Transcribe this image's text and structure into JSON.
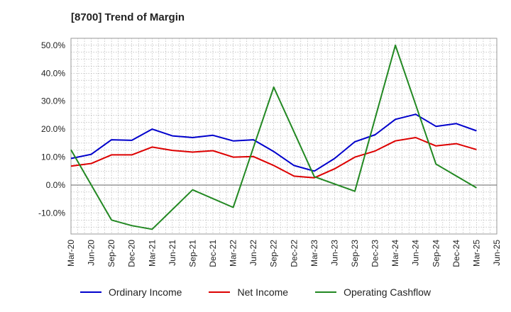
{
  "header": {
    "title": "[8700]  Trend of Margin"
  },
  "colors": {
    "ordinary": "#0000cc",
    "net": "#dd0000",
    "cashflow": "#228822",
    "grid": "#aaaaaa",
    "zero": "#666666"
  },
  "chart_data": {
    "type": "line",
    "title": "[8700]  Trend of Margin",
    "xlabel": "",
    "ylabel": "",
    "ylim": [
      -17.5,
      52.5
    ],
    "yticks": [
      "50.0%",
      "40.0%",
      "30.0%",
      "20.0%",
      "10.0%",
      "0.0%",
      "-10.0%"
    ],
    "ytick_values": [
      50,
      40,
      30,
      20,
      10,
      0,
      -10
    ],
    "categories": [
      "Mar-20",
      "Jun-20",
      "Sep-20",
      "Dec-20",
      "Mar-21",
      "Jun-21",
      "Sep-21",
      "Dec-21",
      "Mar-22",
      "Jun-22",
      "Sep-22",
      "Dec-22",
      "Mar-23",
      "Jun-23",
      "Sep-23",
      "Dec-23",
      "Mar-24",
      "Jun-24",
      "Sep-24",
      "Dec-24",
      "Mar-25",
      "Jun-25"
    ],
    "grid": true,
    "legend_position": "bottom",
    "series": [
      {
        "name": "Ordinary Income",
        "color": "#0000cc",
        "values": [
          9.5,
          11.0,
          16.2,
          16.0,
          20.0,
          17.6,
          17.0,
          17.8,
          15.8,
          16.2,
          12.0,
          7.0,
          5.0,
          9.5,
          15.5,
          18.0,
          23.5,
          25.3,
          21.0,
          22.0,
          19.4,
          null
        ]
      },
      {
        "name": "Net Income",
        "color": "#dd0000",
        "values": [
          6.8,
          7.7,
          10.8,
          10.8,
          13.6,
          12.4,
          11.8,
          12.3,
          10.0,
          10.2,
          7.0,
          3.2,
          2.6,
          5.8,
          10.0,
          12.2,
          15.8,
          17.0,
          14.0,
          14.8,
          12.7,
          null
        ]
      },
      {
        "name": "Operating Cashflow",
        "color": "#228822",
        "values": [
          12.6,
          null,
          -12.5,
          -14.5,
          -15.8,
          null,
          -1.7,
          null,
          -8.0,
          null,
          35.0,
          null,
          3.0,
          null,
          -2.2,
          null,
          50.0,
          null,
          7.5,
          null,
          -1.0,
          null
        ]
      }
    ]
  }
}
